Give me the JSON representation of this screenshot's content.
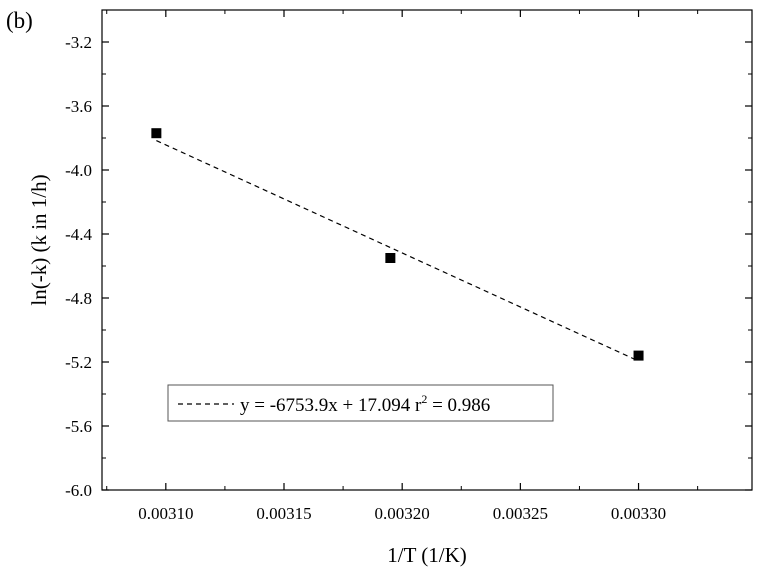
{
  "panel_label": "(b)",
  "chart_data": {
    "type": "scatter",
    "title": "",
    "xlabel": "1/T (1/K)",
    "ylabel": "ln(-k) (k in 1/h)",
    "xlim": [
      0.003073,
      0.003348
    ],
    "ylim": [
      -6.0,
      -3.0
    ],
    "xticks": [
      "0.00310",
      "0.00315",
      "0.00320",
      "0.00325",
      "0.00330"
    ],
    "yticks": [
      "-3.2",
      "-3.6",
      "-4.0",
      "-4.4",
      "-4.8",
      "-5.2",
      "-5.6",
      "-6.0"
    ],
    "grid": false,
    "legend_position": "bottom-left",
    "series": [
      {
        "marker": "square",
        "color": "#000000",
        "points": [
          {
            "x": 0.003096,
            "y": -3.77
          },
          {
            "x": 0.003195,
            "y": -4.55
          },
          {
            "x": 0.0033,
            "y": -5.16
          }
        ]
      }
    ],
    "fit_line": {
      "style": "dashed",
      "color": "#000000",
      "slope": -6753.9,
      "intercept": 17.094,
      "x_range": [
        0.003096,
        0.0033
      ],
      "legend_label_main": "y = -6753.9x + 17.094 r",
      "legend_label_sup": "2",
      "legend_label_tail": " = 0.986"
    }
  }
}
